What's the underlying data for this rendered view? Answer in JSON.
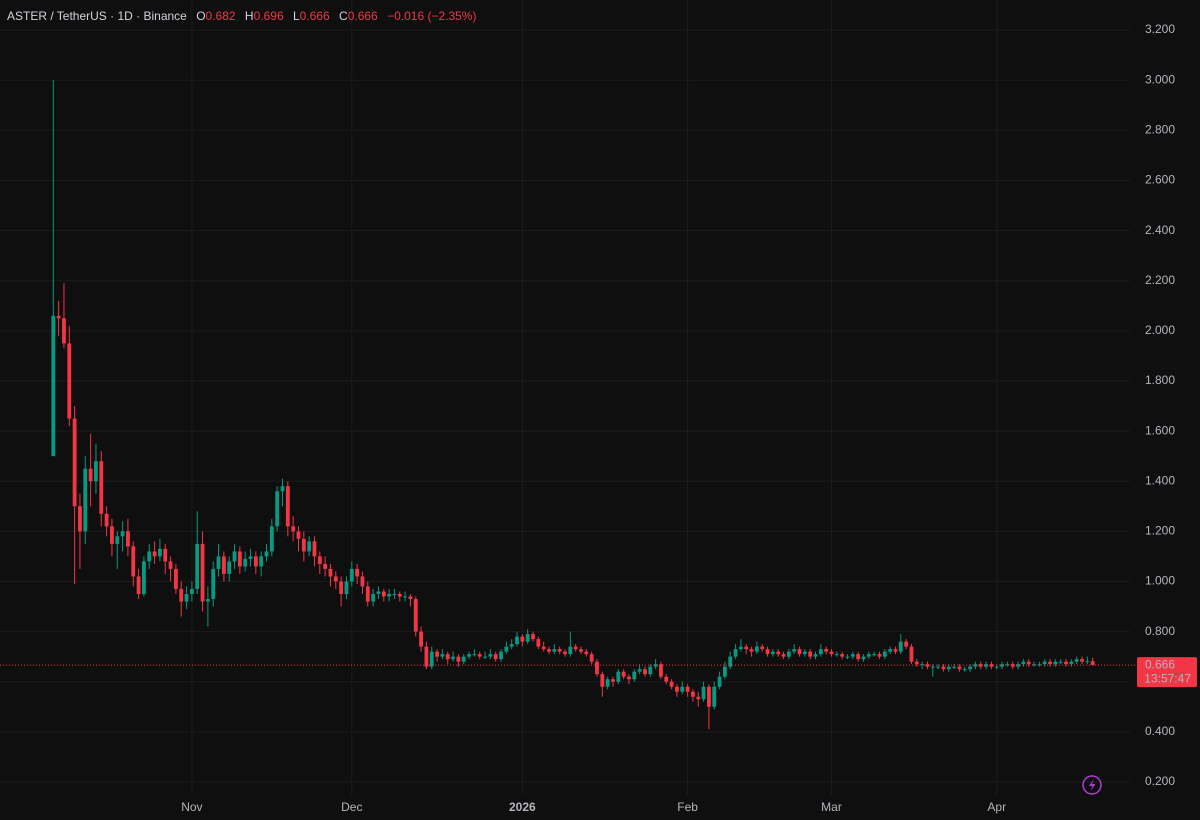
{
  "chart_data": {
    "type": "candlestick",
    "title": "ASTER / TetherUS · 1D · Binance",
    "ohlc_labels": [
      "O",
      "H",
      "L",
      "C"
    ],
    "change_label": "−0.016 (−2.35%)",
    "countdown": "13:57:47",
    "up_color": "#089981",
    "down_color": "#f23645",
    "grid": true,
    "xlim": [
      -10,
      202
    ],
    "xticks": [
      {
        "value": 26,
        "label": "Nov"
      },
      {
        "value": 56,
        "label": "Dec"
      },
      {
        "value": 88,
        "label": "2026"
      },
      {
        "value": 119,
        "label": "Feb"
      },
      {
        "value": 146,
        "label": "Mar"
      },
      {
        "value": 177,
        "label": "Apr"
      }
    ],
    "ylim": [
      0.148,
      3.32
    ],
    "yticks": [
      {
        "value": 0.2,
        "label": "0.200"
      },
      {
        "value": 0.4,
        "label": "0.400"
      },
      {
        "value": 0.6,
        "label": "0.600"
      },
      {
        "value": 0.8,
        "label": "0.800"
      },
      {
        "value": 1.0,
        "label": "1.000"
      },
      {
        "value": 1.2,
        "label": "1.200"
      },
      {
        "value": 1.4,
        "label": "1.400"
      },
      {
        "value": 1.6,
        "label": "1.600"
      },
      {
        "value": 1.8,
        "label": "1.800"
      },
      {
        "value": 2.0,
        "label": "2.000"
      },
      {
        "value": 2.2,
        "label": "2.200"
      },
      {
        "value": 2.4,
        "label": "2.400"
      },
      {
        "value": 2.6,
        "label": "2.600"
      },
      {
        "value": 2.8,
        "label": "2.800"
      },
      {
        "value": 3.0,
        "label": "3.000"
      },
      {
        "value": 3.2,
        "label": "3.200"
      }
    ],
    "candles": [
      [
        1.5,
        3.0,
        1.5,
        2.06
      ],
      [
        2.06,
        2.12,
        1.98,
        2.05
      ],
      [
        2.05,
        2.19,
        1.93,
        1.95
      ],
      [
        1.95,
        2.02,
        1.62,
        1.65
      ],
      [
        1.65,
        1.7,
        0.99,
        1.3
      ],
      [
        1.3,
        1.35,
        1.05,
        1.2
      ],
      [
        1.2,
        1.5,
        1.15,
        1.45
      ],
      [
        1.45,
        1.59,
        1.3,
        1.4
      ],
      [
        1.4,
        1.55,
        1.35,
        1.48
      ],
      [
        1.48,
        1.52,
        1.22,
        1.27
      ],
      [
        1.27,
        1.3,
        1.18,
        1.22
      ],
      [
        1.22,
        1.25,
        1.1,
        1.15
      ],
      [
        1.15,
        1.2,
        1.05,
        1.18
      ],
      [
        1.18,
        1.24,
        1.12,
        1.2
      ],
      [
        1.2,
        1.25,
        1.1,
        1.14
      ],
      [
        1.14,
        1.16,
        0.98,
        1.02
      ],
      [
        1.02,
        1.05,
        0.93,
        0.95
      ],
      [
        0.95,
        1.1,
        0.94,
        1.08
      ],
      [
        1.08,
        1.15,
        1.05,
        1.12
      ],
      [
        1.12,
        1.16,
        1.07,
        1.1
      ],
      [
        1.1,
        1.17,
        1.08,
        1.13
      ],
      [
        1.13,
        1.15,
        1.03,
        1.08
      ],
      [
        1.08,
        1.1,
        1.0,
        1.05
      ],
      [
        1.05,
        1.07,
        0.95,
        0.97
      ],
      [
        0.97,
        1.0,
        0.86,
        0.92
      ],
      [
        0.92,
        0.98,
        0.89,
        0.95
      ],
      [
        0.95,
        1.0,
        0.92,
        0.97
      ],
      [
        0.97,
        1.28,
        0.95,
        1.15
      ],
      [
        1.15,
        1.2,
        0.88,
        0.92
      ],
      [
        0.92,
        0.98,
        0.82,
        0.93
      ],
      [
        0.93,
        1.08,
        0.9,
        1.05
      ],
      [
        1.05,
        1.15,
        1.02,
        1.1
      ],
      [
        1.1,
        1.12,
        1.0,
        1.03
      ],
      [
        1.03,
        1.1,
        1.0,
        1.08
      ],
      [
        1.08,
        1.15,
        1.05,
        1.12
      ],
      [
        1.12,
        1.14,
        1.03,
        1.06
      ],
      [
        1.06,
        1.12,
        1.04,
        1.09
      ],
      [
        1.09,
        1.13,
        1.06,
        1.1
      ],
      [
        1.1,
        1.12,
        1.03,
        1.06
      ],
      [
        1.06,
        1.12,
        1.02,
        1.1
      ],
      [
        1.1,
        1.15,
        1.08,
        1.12
      ],
      [
        1.12,
        1.25,
        1.1,
        1.22
      ],
      [
        1.22,
        1.38,
        1.2,
        1.36
      ],
      [
        1.36,
        1.41,
        1.3,
        1.38
      ],
      [
        1.38,
        1.4,
        1.18,
        1.22
      ],
      [
        1.22,
        1.26,
        1.16,
        1.2
      ],
      [
        1.2,
        1.22,
        1.12,
        1.17
      ],
      [
        1.17,
        1.2,
        1.08,
        1.12
      ],
      [
        1.12,
        1.18,
        1.1,
        1.16
      ],
      [
        1.16,
        1.18,
        1.06,
        1.1
      ],
      [
        1.1,
        1.12,
        1.03,
        1.07
      ],
      [
        1.07,
        1.1,
        1.02,
        1.05
      ],
      [
        1.05,
        1.07,
        0.98,
        1.02
      ],
      [
        1.02,
        1.04,
        0.97,
        1.0
      ],
      [
        1.0,
        1.02,
        0.9,
        0.95
      ],
      [
        0.95,
        1.02,
        0.93,
        1.0
      ],
      [
        1.0,
        1.08,
        0.98,
        1.05
      ],
      [
        1.05,
        1.07,
        0.99,
        1.02
      ],
      [
        1.02,
        1.04,
        0.95,
        0.98
      ],
      [
        0.98,
        1.0,
        0.9,
        0.92
      ],
      [
        0.92,
        0.97,
        0.9,
        0.95
      ],
      [
        0.95,
        0.98,
        0.93,
        0.96
      ],
      [
        0.96,
        0.97,
        0.92,
        0.94
      ],
      [
        0.94,
        0.97,
        0.92,
        0.95
      ],
      [
        0.95,
        0.97,
        0.93,
        0.95
      ],
      [
        0.95,
        0.96,
        0.92,
        0.94
      ],
      [
        0.94,
        0.96,
        0.92,
        0.94
      ],
      [
        0.94,
        0.95,
        0.9,
        0.93
      ],
      [
        0.93,
        0.94,
        0.78,
        0.8
      ],
      [
        0.8,
        0.82,
        0.72,
        0.74
      ],
      [
        0.74,
        0.76,
        0.65,
        0.66
      ],
      [
        0.66,
        0.74,
        0.65,
        0.72
      ],
      [
        0.72,
        0.73,
        0.68,
        0.7
      ],
      [
        0.7,
        0.73,
        0.69,
        0.71
      ],
      [
        0.71,
        0.72,
        0.67,
        0.69
      ],
      [
        0.69,
        0.72,
        0.68,
        0.7
      ],
      [
        0.7,
        0.71,
        0.66,
        0.68
      ],
      [
        0.68,
        0.71,
        0.67,
        0.7
      ],
      [
        0.7,
        0.72,
        0.69,
        0.71
      ],
      [
        0.71,
        0.73,
        0.7,
        0.71
      ],
      [
        0.71,
        0.72,
        0.69,
        0.7
      ],
      [
        0.7,
        0.72,
        0.69,
        0.7
      ],
      [
        0.7,
        0.73,
        0.69,
        0.71
      ],
      [
        0.71,
        0.72,
        0.68,
        0.69
      ],
      [
        0.69,
        0.73,
        0.68,
        0.72
      ],
      [
        0.72,
        0.76,
        0.71,
        0.74
      ],
      [
        0.74,
        0.77,
        0.73,
        0.75
      ],
      [
        0.75,
        0.8,
        0.74,
        0.78
      ],
      [
        0.78,
        0.79,
        0.74,
        0.76
      ],
      [
        0.76,
        0.81,
        0.75,
        0.79
      ],
      [
        0.79,
        0.8,
        0.76,
        0.77
      ],
      [
        0.77,
        0.78,
        0.73,
        0.74
      ],
      [
        0.74,
        0.76,
        0.72,
        0.73
      ],
      [
        0.73,
        0.74,
        0.71,
        0.72
      ],
      [
        0.72,
        0.75,
        0.71,
        0.73
      ],
      [
        0.73,
        0.74,
        0.71,
        0.72
      ],
      [
        0.72,
        0.73,
        0.7,
        0.71
      ],
      [
        0.71,
        0.8,
        0.7,
        0.74
      ],
      [
        0.74,
        0.75,
        0.72,
        0.73
      ],
      [
        0.73,
        0.74,
        0.71,
        0.72
      ],
      [
        0.72,
        0.73,
        0.7,
        0.71
      ],
      [
        0.71,
        0.72,
        0.67,
        0.68
      ],
      [
        0.68,
        0.69,
        0.62,
        0.63
      ],
      [
        0.63,
        0.64,
        0.54,
        0.58
      ],
      [
        0.58,
        0.62,
        0.57,
        0.61
      ],
      [
        0.61,
        0.62,
        0.58,
        0.6
      ],
      [
        0.6,
        0.65,
        0.59,
        0.64
      ],
      [
        0.64,
        0.65,
        0.61,
        0.62
      ],
      [
        0.62,
        0.63,
        0.59,
        0.61
      ],
      [
        0.61,
        0.65,
        0.6,
        0.64
      ],
      [
        0.64,
        0.67,
        0.63,
        0.65
      ],
      [
        0.65,
        0.66,
        0.62,
        0.63
      ],
      [
        0.63,
        0.67,
        0.62,
        0.66
      ],
      [
        0.66,
        0.69,
        0.65,
        0.67
      ],
      [
        0.67,
        0.68,
        0.61,
        0.62
      ],
      [
        0.62,
        0.63,
        0.59,
        0.6
      ],
      [
        0.6,
        0.61,
        0.57,
        0.58
      ],
      [
        0.58,
        0.59,
        0.54,
        0.56
      ],
      [
        0.56,
        0.6,
        0.55,
        0.58
      ],
      [
        0.58,
        0.59,
        0.54,
        0.56
      ],
      [
        0.56,
        0.57,
        0.52,
        0.54
      ],
      [
        0.54,
        0.56,
        0.5,
        0.53
      ],
      [
        0.53,
        0.6,
        0.52,
        0.58
      ],
      [
        0.58,
        0.59,
        0.41,
        0.5
      ],
      [
        0.5,
        0.6,
        0.49,
        0.58
      ],
      [
        0.58,
        0.64,
        0.57,
        0.62
      ],
      [
        0.62,
        0.68,
        0.61,
        0.66
      ],
      [
        0.66,
        0.72,
        0.65,
        0.7
      ],
      [
        0.7,
        0.75,
        0.69,
        0.73
      ],
      [
        0.73,
        0.77,
        0.72,
        0.74
      ],
      [
        0.74,
        0.75,
        0.71,
        0.73
      ],
      [
        0.73,
        0.74,
        0.7,
        0.72
      ],
      [
        0.72,
        0.76,
        0.71,
        0.74
      ],
      [
        0.74,
        0.75,
        0.72,
        0.73
      ],
      [
        0.73,
        0.74,
        0.7,
        0.71
      ],
      [
        0.71,
        0.73,
        0.7,
        0.72
      ],
      [
        0.72,
        0.73,
        0.7,
        0.71
      ],
      [
        0.71,
        0.72,
        0.69,
        0.7
      ],
      [
        0.7,
        0.73,
        0.69,
        0.72
      ],
      [
        0.72,
        0.75,
        0.71,
        0.73
      ],
      [
        0.73,
        0.74,
        0.7,
        0.71
      ],
      [
        0.71,
        0.73,
        0.7,
        0.72
      ],
      [
        0.72,
        0.73,
        0.69,
        0.7
      ],
      [
        0.7,
        0.72,
        0.69,
        0.71
      ],
      [
        0.71,
        0.75,
        0.7,
        0.73
      ],
      [
        0.73,
        0.74,
        0.71,
        0.72
      ],
      [
        0.72,
        0.73,
        0.7,
        0.71
      ],
      [
        0.71,
        0.72,
        0.7,
        0.71
      ],
      [
        0.71,
        0.72,
        0.69,
        0.7
      ],
      [
        0.7,
        0.71,
        0.69,
        0.7
      ],
      [
        0.7,
        0.72,
        0.69,
        0.71
      ],
      [
        0.71,
        0.72,
        0.68,
        0.69
      ],
      [
        0.69,
        0.71,
        0.68,
        0.7
      ],
      [
        0.7,
        0.72,
        0.69,
        0.71
      ],
      [
        0.71,
        0.72,
        0.7,
        0.71
      ],
      [
        0.71,
        0.72,
        0.69,
        0.7
      ],
      [
        0.7,
        0.73,
        0.69,
        0.72
      ],
      [
        0.72,
        0.74,
        0.71,
        0.73
      ],
      [
        0.73,
        0.74,
        0.71,
        0.72
      ],
      [
        0.72,
        0.79,
        0.71,
        0.76
      ],
      [
        0.76,
        0.77,
        0.73,
        0.74
      ],
      [
        0.74,
        0.75,
        0.67,
        0.68
      ],
      [
        0.68,
        0.69,
        0.66,
        0.67
      ],
      [
        0.67,
        0.68,
        0.65,
        0.67
      ],
      [
        0.67,
        0.68,
        0.65,
        0.66
      ],
      [
        0.66,
        0.67,
        0.62,
        0.66
      ],
      [
        0.66,
        0.67,
        0.65,
        0.66
      ],
      [
        0.66,
        0.67,
        0.64,
        0.65
      ],
      [
        0.65,
        0.67,
        0.64,
        0.66
      ],
      [
        0.66,
        0.67,
        0.65,
        0.66
      ],
      [
        0.66,
        0.67,
        0.64,
        0.65
      ],
      [
        0.65,
        0.66,
        0.64,
        0.65
      ],
      [
        0.65,
        0.67,
        0.64,
        0.66
      ],
      [
        0.66,
        0.68,
        0.65,
        0.67
      ],
      [
        0.67,
        0.68,
        0.65,
        0.66
      ],
      [
        0.66,
        0.68,
        0.65,
        0.67
      ],
      [
        0.67,
        0.68,
        0.65,
        0.66
      ],
      [
        0.66,
        0.67,
        0.65,
        0.66
      ],
      [
        0.66,
        0.68,
        0.65,
        0.67
      ],
      [
        0.67,
        0.68,
        0.66,
        0.67
      ],
      [
        0.67,
        0.68,
        0.65,
        0.66
      ],
      [
        0.66,
        0.68,
        0.65,
        0.67
      ],
      [
        0.67,
        0.69,
        0.66,
        0.68
      ],
      [
        0.68,
        0.69,
        0.66,
        0.67
      ],
      [
        0.67,
        0.68,
        0.66,
        0.67
      ],
      [
        0.67,
        0.68,
        0.66,
        0.67
      ],
      [
        0.67,
        0.69,
        0.66,
        0.68
      ],
      [
        0.68,
        0.69,
        0.66,
        0.67
      ],
      [
        0.67,
        0.69,
        0.66,
        0.68
      ],
      [
        0.68,
        0.69,
        0.67,
        0.68
      ],
      [
        0.68,
        0.69,
        0.66,
        0.67
      ],
      [
        0.67,
        0.69,
        0.66,
        0.68
      ],
      [
        0.68,
        0.7,
        0.67,
        0.69
      ],
      [
        0.69,
        0.7,
        0.67,
        0.68
      ],
      [
        0.68,
        0.7,
        0.67,
        0.682
      ],
      [
        0.682,
        0.696,
        0.666,
        0.666
      ]
    ]
  }
}
